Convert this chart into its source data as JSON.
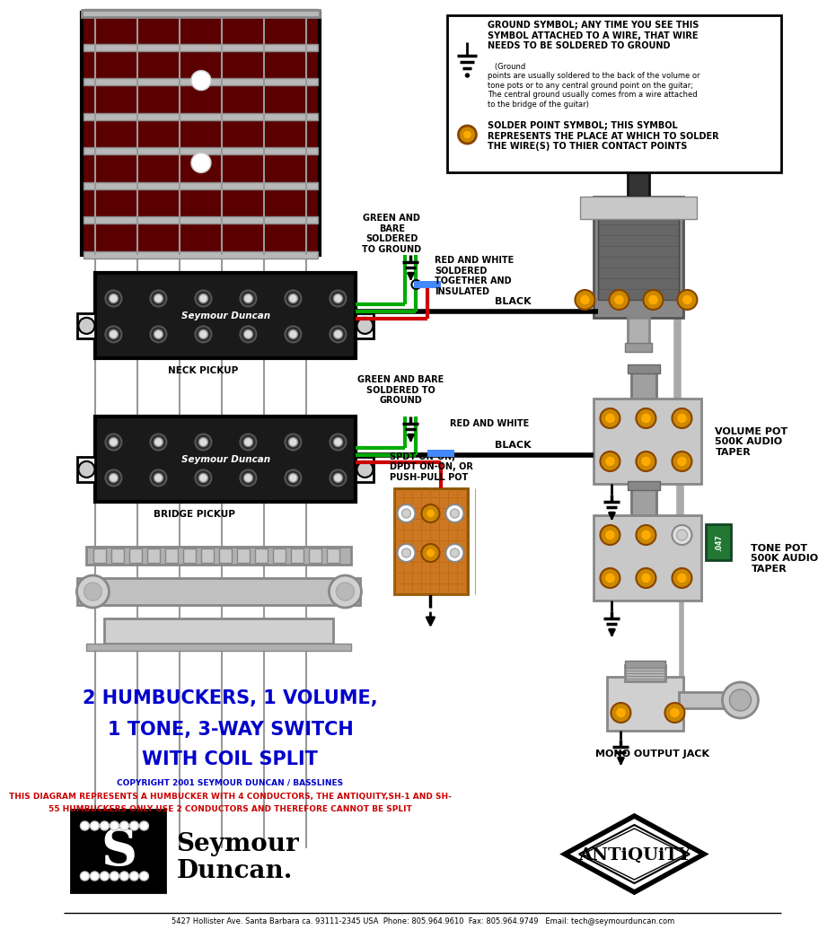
{
  "bg_color": "#ffffff",
  "title_line1": "2 HUMBUCKERS, 1 VOLUME,",
  "title_line2": "1 TONE, 3-WAY SWITCH",
  "title_line3": "WITH COIL SPLIT",
  "title_color": "#0000cc",
  "copyright_text": "COPYRIGHT 2001 SEYMOUR DUNCAN / BASSLINES",
  "copyright_color": "#0000cc",
  "disclaimer_line1": "THIS DIAGRAM REPRESENTS A HUMBUCKER WITH 4 CONDUCTORS, THE ANTIQUITY,SH-1 AND SH-",
  "disclaimer_line2": "55 HUMBUCKERS ONLY USE 2 CONDUCTORS AND THEREFORE CANNOT BE SPLIT",
  "disclaimer_color": "#cc0000",
  "footer_text": "5427 Hollister Ave. Santa Barbara ca. 93111-2345 USA  Phone: 805.964.9610  Fax: 805.964.9749   Email: tech@seymourduncan.com",
  "footer_color": "#000000",
  "neck_label": "NECK PICKUP",
  "bridge_label": "BRIDGE PICKUP",
  "sd_label": "Seymour Duncan",
  "green_bare_neck_label": "GREEN AND\nBARE\nSOLDERED\nTO GROUND",
  "green_bare_bridge_label": "GREEN AND BARE\nSOLDERED TO\nGROUND",
  "red_white_neck_label": "RED AND WHITE\nSOLDERED\nTOGETHER AND\nINSULATED",
  "red_white_bridge_label": "RED AND WHITE",
  "black_neck_label": "BLACK",
  "black_bridge_label": "BLACK",
  "volume_label": "VOLUME POT\n500K AUDIO\nTAPER",
  "tone_label": "TONE POT\n500K AUDIO\nTAPER",
  "output_label": "MONO OUTPUT JACK",
  "spdt_label": "SPDT ON-ON,\nDPDT ON-ON, OR\nPUSH-PULL POT",
  "ground_symbol_title_bold": "GROUND SYMBOL; ANY TIME YOU SEE THIS\nSYMBOL ATTACHED TO A WIRE, THAT WIRE\nNEEDS TO BE SOLDERED TO GROUND",
  "ground_symbol_body": "   (Ground\npoints are usually soldered to the back of the volume or\ntone pots or to any central ground point on the guitar;\nThe central ground usually comes from a wire attached\nto the bridge of the guitar)",
  "solder_title": "SOLDER POINT SYMBOL; THIS SYMBOL\nREPRESENTS THE PLACE AT WHICH TO SOLDER\nTHE WIRE(S) TO THIER CONTACT POINTS",
  "fretboard_color": "#8b0000",
  "fretboard_dark": "#5a0000",
  "pickup_color": "#1a1a1a",
  "wire_black": "#000000",
  "wire_green": "#00aa00",
  "wire_red": "#cc0000",
  "wire_white": "#dddddd",
  "wire_gray": "#aaaaaa",
  "wire_blue_tape": "#4488ff",
  "pot_color": "#c8c8c8",
  "pot_terminal_color": "#cc8800",
  "spdt_color": "#cc7722",
  "switch_body_color": "#888888",
  "cap_color": "#227733"
}
